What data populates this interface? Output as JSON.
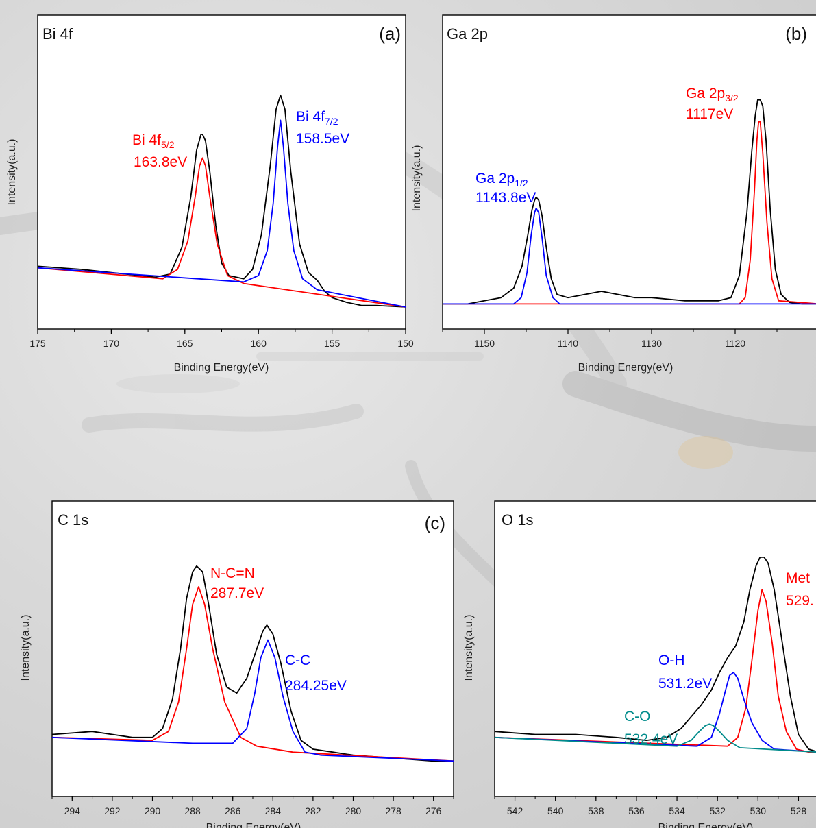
{
  "chart_data": [
    {
      "type": "line",
      "panel_label": "(a)",
      "element_label": "Bi 4f",
      "xlabel": "Binding Energy(eV)",
      "ylabel": "Intensity(a.u.)",
      "xlim": [
        175,
        150
      ],
      "xticks": [
        "175",
        "170",
        "165",
        "160",
        "155",
        "150"
      ],
      "series": [
        {
          "color": "#000000",
          "x": [
            175,
            172,
            170,
            168,
            167,
            166,
            165.2,
            164.6,
            164.2,
            163.9,
            163.8,
            163.6,
            163.3,
            162.9,
            162.5,
            162.0,
            161.5,
            161.0,
            160.4,
            159.8,
            159.2,
            158.8,
            158.5,
            158.2,
            157.8,
            157.2,
            156.6,
            156.0,
            155.5,
            155.0,
            154.0,
            153.0,
            152.0,
            150
          ],
          "y": [
            0.2,
            0.19,
            0.18,
            0.17,
            0.165,
            0.175,
            0.26,
            0.42,
            0.57,
            0.62,
            0.62,
            0.6,
            0.5,
            0.33,
            0.21,
            0.17,
            0.165,
            0.16,
            0.19,
            0.3,
            0.52,
            0.7,
            0.745,
            0.7,
            0.5,
            0.27,
            0.18,
            0.155,
            0.12,
            0.1,
            0.085,
            0.075,
            0.075,
            0.07
          ]
        },
        {
          "color": "#ff0000",
          "x": [
            175,
            166.5,
            165.5,
            164.8,
            164.3,
            164.0,
            163.8,
            163.6,
            163.3,
            162.8,
            162.1,
            161.0,
            150
          ],
          "y": [
            0.195,
            0.16,
            0.19,
            0.28,
            0.42,
            0.52,
            0.545,
            0.52,
            0.42,
            0.27,
            0.17,
            0.145,
            0.07
          ]
        },
        {
          "color": "#0000ff",
          "x": [
            175,
            161.0,
            160.0,
            159.4,
            159.0,
            158.7,
            158.5,
            158.3,
            158.0,
            157.6,
            157.0,
            156.0,
            150
          ],
          "y": [
            0.195,
            0.15,
            0.17,
            0.25,
            0.4,
            0.58,
            0.665,
            0.58,
            0.4,
            0.25,
            0.16,
            0.125,
            0.07
          ]
        }
      ],
      "annotations": [
        {
          "text": "Bi 4f",
          "sub": "5/2",
          "color": "#ff0000"
        },
        {
          "text": "163.8eV",
          "color": "#ff0000"
        },
        {
          "text": "Bi 4f",
          "sub": "7/2",
          "color": "#0000ff"
        },
        {
          "text": "158.5eV",
          "color": "#0000ff"
        }
      ]
    },
    {
      "type": "line",
      "panel_label": "(b)",
      "element_label": "Ga 2p",
      "xlabel": "Binding Energy(eV)",
      "ylabel": "Intensity(a.u.)",
      "xlim": [
        1155,
        1110
      ],
      "xticks": [
        "1150",
        "1140",
        "1130",
        "1120",
        "111"
      ],
      "series": [
        {
          "color": "#000000",
          "x": [
            1155,
            1152,
            1150,
            1148,
            1146.5,
            1145.5,
            1144.8,
            1144.3,
            1144.0,
            1143.8,
            1143.5,
            1143.1,
            1142.6,
            1142.0,
            1141.3,
            1140,
            1138,
            1136,
            1134,
            1132,
            1130,
            1128,
            1126,
            1124,
            1122,
            1120.5,
            1119.5,
            1118.6,
            1118.0,
            1117.6,
            1117.3,
            1117.0,
            1116.7,
            1116.3,
            1115.8,
            1115.2,
            1114.5,
            1113.5,
            1112,
            1110
          ],
          "y": [
            0.08,
            0.08,
            0.09,
            0.1,
            0.13,
            0.2,
            0.3,
            0.38,
            0.41,
            0.42,
            0.41,
            0.36,
            0.26,
            0.16,
            0.11,
            0.1,
            0.11,
            0.12,
            0.11,
            0.1,
            0.1,
            0.095,
            0.09,
            0.09,
            0.09,
            0.1,
            0.17,
            0.37,
            0.57,
            0.68,
            0.73,
            0.73,
            0.71,
            0.6,
            0.38,
            0.19,
            0.11,
            0.085,
            0.08,
            0.08
          ]
        },
        {
          "color": "#ff0000",
          "x": [
            1155,
            1119.5,
            1118.8,
            1118.2,
            1117.7,
            1117.4,
            1117.2,
            1117.0,
            1116.7,
            1116.2,
            1115.6,
            1114.8,
            1110
          ],
          "y": [
            0.08,
            0.08,
            0.1,
            0.22,
            0.44,
            0.6,
            0.66,
            0.66,
            0.56,
            0.34,
            0.16,
            0.09,
            0.08
          ]
        },
        {
          "color": "#0000ff",
          "x": [
            1155,
            1146.5,
            1145.6,
            1144.9,
            1144.4,
            1144.0,
            1143.8,
            1143.5,
            1143.1,
            1142.6,
            1141.8,
            1141.0,
            1110
          ],
          "y": [
            0.08,
            0.08,
            0.1,
            0.18,
            0.3,
            0.37,
            0.385,
            0.37,
            0.29,
            0.17,
            0.1,
            0.08,
            0.08
          ]
        }
      ],
      "annotations": [
        {
          "text": "Ga 2p",
          "sub": "3/2",
          "color": "#ff0000"
        },
        {
          "text": "1117eV",
          "color": "#ff0000"
        },
        {
          "text": "Ga 2p",
          "sub": "1/2",
          "color": "#0000ff"
        },
        {
          "text": "1143.8eV",
          "color": "#0000ff"
        }
      ]
    },
    {
      "type": "line",
      "panel_label": "(c)",
      "element_label": "C 1s",
      "xlabel": "Binding Energy(eV)",
      "ylabel": "Intensity(a.u.)",
      "xlim": [
        295,
        275
      ],
      "xticks": [
        "294",
        "292",
        "290",
        "288",
        "286",
        "284",
        "282",
        "280",
        "278",
        "276"
      ],
      "series": [
        {
          "color": "#000000",
          "x": [
            295,
            293,
            292,
            291,
            290,
            289.5,
            289,
            288.6,
            288.3,
            288.0,
            287.8,
            287.5,
            287.2,
            286.8,
            286.3,
            285.8,
            285.3,
            284.9,
            284.5,
            284.3,
            284.0,
            283.6,
            283.1,
            282.6,
            282.0,
            281,
            280,
            278,
            276,
            275
          ],
          "y": [
            0.21,
            0.22,
            0.21,
            0.2,
            0.2,
            0.23,
            0.33,
            0.5,
            0.67,
            0.76,
            0.78,
            0.76,
            0.65,
            0.48,
            0.37,
            0.35,
            0.4,
            0.48,
            0.56,
            0.58,
            0.55,
            0.45,
            0.29,
            0.19,
            0.16,
            0.15,
            0.14,
            0.13,
            0.12,
            0.12
          ]
        },
        {
          "color": "#ff0000",
          "x": [
            295,
            290.0,
            289.2,
            288.7,
            288.3,
            288.0,
            287.7,
            287.4,
            287.0,
            286.4,
            285.6,
            284.8,
            283.0,
            275
          ],
          "y": [
            0.2,
            0.19,
            0.22,
            0.32,
            0.5,
            0.65,
            0.71,
            0.65,
            0.5,
            0.32,
            0.2,
            0.17,
            0.15,
            0.12
          ]
        },
        {
          "color": "#0000ff",
          "x": [
            295,
            288,
            286.0,
            285.3,
            284.9,
            284.6,
            284.25,
            283.9,
            283.5,
            283.0,
            282.4,
            281.6,
            275
          ],
          "y": [
            0.2,
            0.18,
            0.18,
            0.23,
            0.35,
            0.47,
            0.53,
            0.47,
            0.34,
            0.22,
            0.15,
            0.14,
            0.12
          ]
        }
      ],
      "annotations": [
        {
          "text": "N-C=N",
          "color": "#ff0000"
        },
        {
          "text": "287.7eV",
          "color": "#ff0000"
        },
        {
          "text": "C-C",
          "color": "#0000ff"
        },
        {
          "text": "284.25eV",
          "color": "#0000ff"
        }
      ]
    },
    {
      "type": "line",
      "panel_label": "",
      "element_label": "O 1s",
      "xlabel": "Binding Energy(eV)",
      "ylabel": "Intensity(a.u.)",
      "xlim": [
        543,
        527
      ],
      "xticks": [
        "542",
        "540",
        "538",
        "536",
        "534",
        "532",
        "530",
        "528"
      ],
      "series": [
        {
          "color": "#000000",
          "x": [
            543,
            541,
            539,
            537,
            535.5,
            534.5,
            533.8,
            533.3,
            532.8,
            532.3,
            531.9,
            531.5,
            531.1,
            530.7,
            530.4,
            530.1,
            529.9,
            529.7,
            529.5,
            529.2,
            528.8,
            528.4,
            528.0,
            527.5,
            527
          ],
          "y": [
            0.22,
            0.21,
            0.21,
            0.2,
            0.19,
            0.2,
            0.23,
            0.27,
            0.31,
            0.36,
            0.42,
            0.47,
            0.51,
            0.59,
            0.7,
            0.78,
            0.81,
            0.81,
            0.79,
            0.7,
            0.52,
            0.34,
            0.21,
            0.16,
            0.15
          ]
        },
        {
          "color": "#ff0000",
          "x": [
            543,
            531.5,
            531.0,
            530.6,
            530.3,
            530.0,
            529.8,
            529.6,
            529.3,
            529.0,
            528.6,
            528.1,
            527.5,
            527
          ],
          "y": [
            0.2,
            0.17,
            0.2,
            0.3,
            0.46,
            0.63,
            0.7,
            0.66,
            0.52,
            0.34,
            0.22,
            0.16,
            0.15,
            0.15
          ]
        },
        {
          "color": "#0000ff",
          "x": [
            543,
            533.0,
            532.3,
            531.9,
            531.6,
            531.4,
            531.2,
            531.0,
            530.7,
            530.3,
            529.8,
            529.2,
            527
          ],
          "y": [
            0.2,
            0.17,
            0.2,
            0.28,
            0.36,
            0.41,
            0.42,
            0.4,
            0.33,
            0.25,
            0.19,
            0.16,
            0.15
          ]
        },
        {
          "color": "#008b8b",
          "x": [
            543,
            534.0,
            533.3,
            532.9,
            532.6,
            532.4,
            532.2,
            531.9,
            531.5,
            530.9,
            527
          ],
          "y": [
            0.2,
            0.17,
            0.19,
            0.22,
            0.24,
            0.245,
            0.24,
            0.22,
            0.19,
            0.165,
            0.15
          ]
        }
      ],
      "annotations": [
        {
          "text": "Met",
          "color": "#ff0000"
        },
        {
          "text": "529.",
          "color": "#ff0000"
        },
        {
          "text": "O-H",
          "color": "#0000ff"
        },
        {
          "text": "531.2eV",
          "color": "#0000ff"
        },
        {
          "text": "C-O",
          "color": "#008b8b"
        },
        {
          "text": "532.4eV",
          "color": "#008b8b"
        }
      ]
    }
  ],
  "background": {
    "base_color": "#dcdcdc"
  }
}
